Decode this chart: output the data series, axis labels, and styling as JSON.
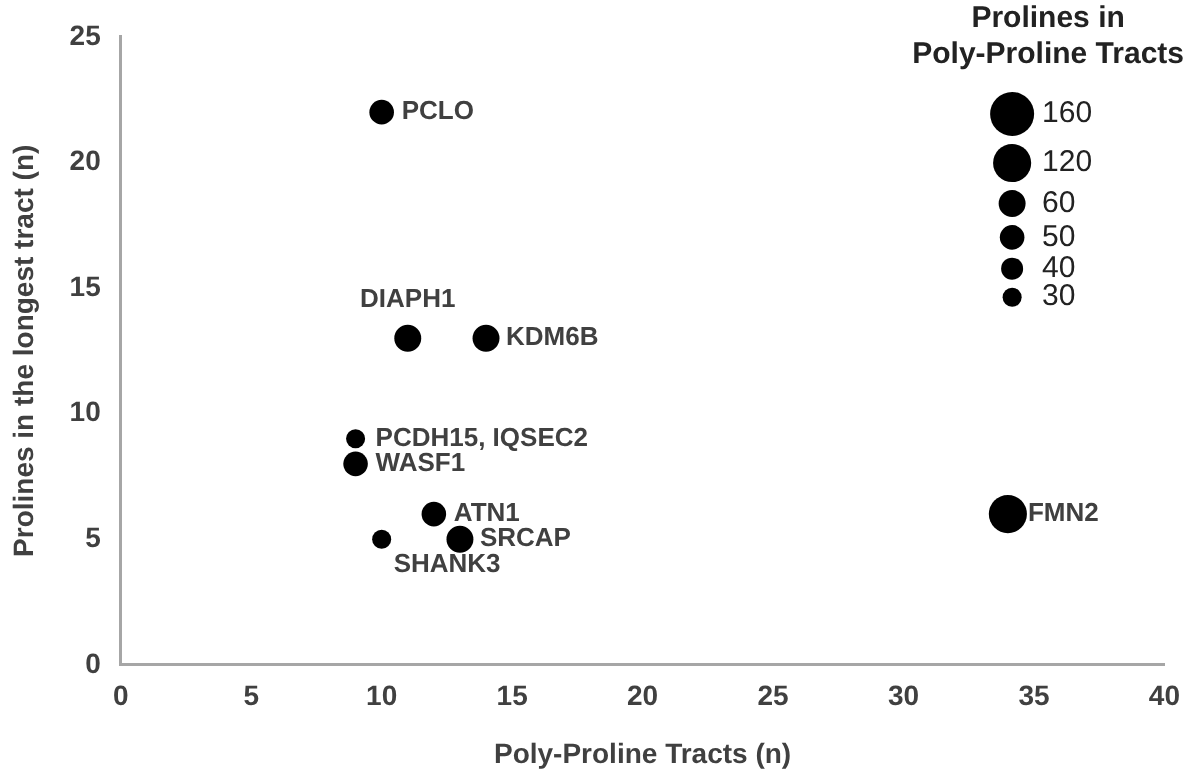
{
  "chart_data": {
    "type": "bubble",
    "xlabel": "Poly-Proline Tracts (n)",
    "ylabel": "Prolines in the longest tract (n)",
    "legend_title": "Prolines in Poly-Proline Tracts",
    "size_legend": [
      160,
      120,
      60,
      50,
      40,
      30
    ],
    "xlim": [
      0,
      40
    ],
    "xticks": [
      0,
      5,
      10,
      15,
      20,
      25,
      30,
      35,
      40
    ],
    "ylim": [
      0,
      25
    ],
    "yticks": [
      0,
      5,
      10,
      15,
      20,
      25
    ],
    "grid": false,
    "series": [
      {
        "color": "#000000",
        "x": [
          10,
          11,
          14,
          9,
          9,
          12,
          13,
          10,
          34
        ],
        "values": [
          22,
          13,
          13,
          9,
          8,
          6,
          5,
          5,
          6
        ],
        "sizes": [
          50,
          60,
          60,
          30,
          50,
          50,
          60,
          30,
          120
        ]
      }
    ],
    "annotations": [
      {
        "text": "PCLO",
        "x": 10,
        "y": 22
      },
      {
        "text": "DIAPH1",
        "x": 11,
        "y": 13
      },
      {
        "text": "KDM6B",
        "x": 14,
        "y": 13
      },
      {
        "text": "PCDH15, IQSEC2",
        "x": 9,
        "y": 9
      },
      {
        "text": "WASF1",
        "x": 9,
        "y": 8
      },
      {
        "text": "ATN1",
        "x": 12,
        "y": 6
      },
      {
        "text": "SRCAP",
        "x": 13,
        "y": 5
      },
      {
        "text": "SHANK3",
        "x": 10,
        "y": 5
      },
      {
        "text": "FMN2",
        "x": 34,
        "y": 6
      }
    ]
  }
}
